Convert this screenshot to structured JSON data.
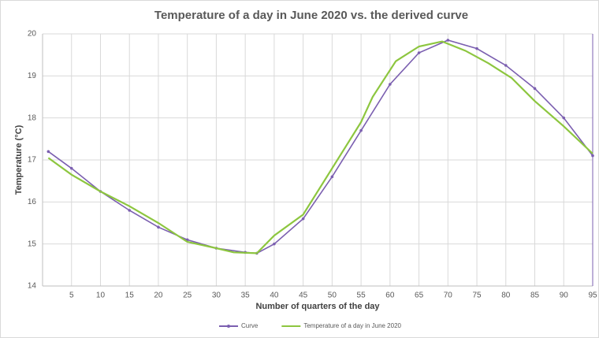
{
  "chart_data": {
    "type": "line",
    "title": "Temperature of a day in June 2020 vs. the derived curve",
    "x_label": "Number of quarters of the day",
    "y_label": "Temperature (°C)",
    "xlim": [
      0,
      95
    ],
    "xticks": [
      5,
      10,
      15,
      20,
      25,
      30,
      35,
      40,
      45,
      50,
      55,
      60,
      65,
      70,
      75,
      80,
      85,
      90,
      95
    ],
    "ylim": [
      14,
      20
    ],
    "yticks": [
      14,
      15,
      16,
      17,
      18,
      19,
      20
    ],
    "grid": true,
    "legend": "bottom",
    "series": [
      {
        "name": "Curve",
        "color": "#7b5fb0",
        "markers": true,
        "x": [
          1,
          5,
          10,
          15,
          20,
          25,
          30,
          35,
          37,
          40,
          45,
          50,
          55,
          60,
          65,
          70,
          75,
          80,
          85,
          90,
          95
        ],
        "values": [
          17.2,
          16.8,
          16.25,
          15.8,
          15.4,
          15.1,
          14.9,
          14.8,
          14.78,
          15.0,
          15.6,
          16.6,
          17.7,
          18.8,
          19.55,
          19.85,
          19.65,
          19.25,
          18.7,
          18.0,
          17.1
        ]
      },
      {
        "name": "Temperature of a day in June 2020",
        "color": "#8dc63f",
        "markers": false,
        "x": [
          1,
          5,
          10,
          15,
          20,
          25,
          30,
          33,
          37,
          40,
          45,
          50,
          55,
          57,
          61,
          65,
          69,
          73,
          77,
          81,
          85,
          90,
          95
        ],
        "values": [
          17.05,
          16.65,
          16.25,
          15.9,
          15.5,
          15.05,
          14.9,
          14.8,
          14.78,
          15.2,
          15.7,
          16.8,
          17.9,
          18.5,
          19.35,
          19.7,
          19.82,
          19.6,
          19.3,
          18.95,
          18.4,
          17.8,
          17.15
        ]
      }
    ]
  }
}
